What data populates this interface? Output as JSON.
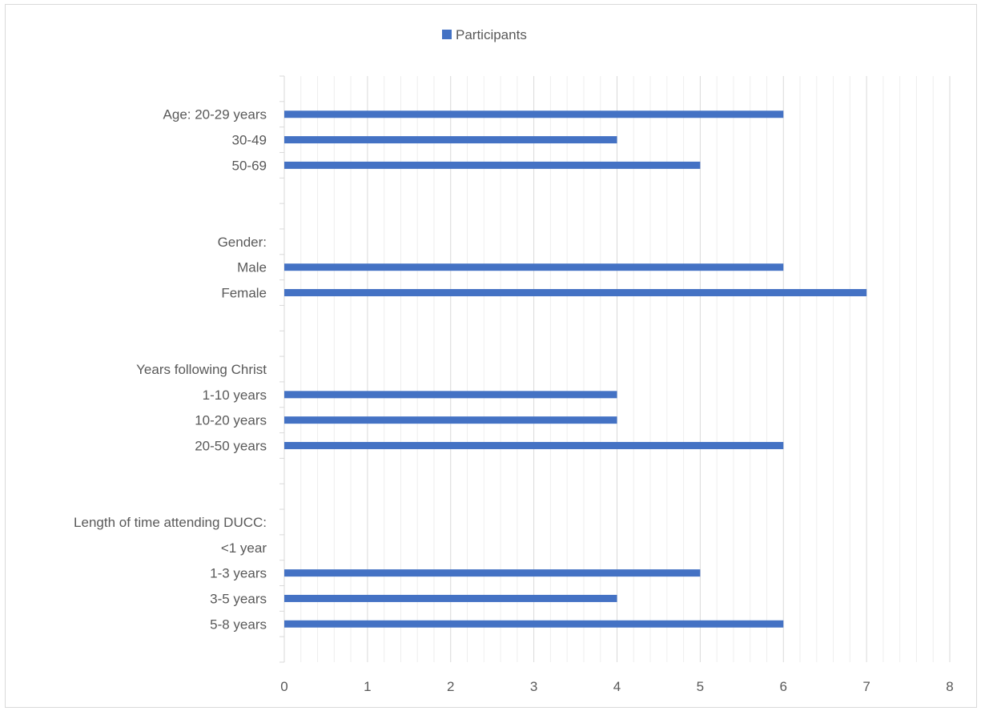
{
  "chart_data": {
    "type": "bar",
    "orientation": "horizontal",
    "title": "",
    "xlabel": "",
    "ylabel": "",
    "xlim": [
      0,
      8
    ],
    "x_ticks": [
      0,
      1,
      2,
      3,
      4,
      5,
      6,
      7,
      8
    ],
    "grid": "vertical major and minor",
    "legend": {
      "position": "top",
      "entries": [
        "Participants"
      ]
    },
    "categories": [
      "Age: 20-29 years",
      "30-49",
      "50-69",
      "",
      "",
      "Gender:",
      "Male",
      "Female",
      "",
      "",
      "Years following Christ",
      "1-10 years",
      "10-20 years",
      "20-50 years",
      "",
      "",
      "Length of time attending DUCC:",
      "<1 year",
      "1-3 years",
      "3-5 years",
      "5-8 years"
    ],
    "series": [
      {
        "name": "Participants",
        "color": "#4472c4",
        "values": [
          6,
          4,
          5,
          null,
          null,
          null,
          6,
          7,
          null,
          null,
          null,
          4,
          4,
          6,
          null,
          null,
          null,
          null,
          5,
          4,
          6
        ]
      }
    ]
  }
}
